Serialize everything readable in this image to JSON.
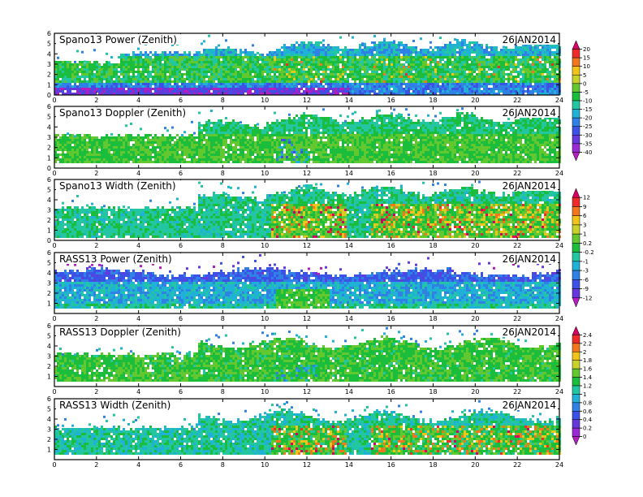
{
  "chart_data": [
    {
      "type": "heatmap",
      "title": "Spano13 Power (Zenith)",
      "date": "26JAN2014",
      "x_ticks": [
        0,
        2,
        4,
        6,
        8,
        10,
        12,
        14,
        16,
        18,
        20,
        22,
        24
      ],
      "y_ticks": [
        0,
        1,
        2,
        3,
        4,
        5,
        6
      ],
      "xlim": [
        0,
        24
      ],
      "ylim": [
        0,
        6
      ],
      "colorbar": "power"
    },
    {
      "type": "heatmap",
      "title": "Spano13 Doppler (Zenith)",
      "date": "26JAN2014",
      "x_ticks": [
        0,
        2,
        4,
        6,
        8,
        10,
        12,
        14,
        16,
        18,
        20,
        22,
        24
      ],
      "y_ticks": [
        0,
        1,
        2,
        3,
        4,
        5,
        6
      ],
      "xlim": [
        0,
        24
      ],
      "ylim": [
        0,
        6
      ],
      "colorbar": "power"
    },
    {
      "type": "heatmap",
      "title": "Spano13 Width (Zenith)",
      "date": "26JAN2014",
      "x_ticks": [
        0,
        2,
        4,
        6,
        8,
        10,
        12,
        14,
        16,
        18,
        20,
        22,
        24
      ],
      "y_ticks": [
        0,
        1,
        2,
        3,
        4,
        5,
        6
      ],
      "xlim": [
        0,
        24
      ],
      "ylim": [
        0,
        6
      ],
      "colorbar": "rass"
    },
    {
      "type": "heatmap",
      "title": "RASS13 Power (Zenith)",
      "date": "26JAN2014",
      "x_ticks": [
        0,
        2,
        4,
        6,
        8,
        10,
        12,
        14,
        16,
        18,
        20,
        22,
        24
      ],
      "y_ticks": [
        1,
        2,
        3,
        4,
        5,
        6
      ],
      "xlim": [
        0,
        24
      ],
      "ylim": [
        0,
        6
      ],
      "colorbar": "rass"
    },
    {
      "type": "heatmap",
      "title": "RASS13 Doppler (Zenith)",
      "date": "26JAN2014",
      "x_ticks": [
        0,
        2,
        4,
        6,
        8,
        10,
        12,
        14,
        16,
        18,
        20,
        22,
        24
      ],
      "y_ticks": [
        1,
        2,
        3,
        4,
        5,
        6
      ],
      "xlim": [
        0,
        24
      ],
      "ylim": [
        0,
        6
      ],
      "colorbar": "width"
    },
    {
      "type": "heatmap",
      "title": "RASS13 Width (Zenith)",
      "date": "26JAN2014",
      "x_ticks": [
        0,
        2,
        4,
        6,
        8,
        10,
        12,
        14,
        16,
        18,
        20,
        22,
        24
      ],
      "y_ticks": [
        1,
        2,
        3,
        4,
        5,
        6
      ],
      "xlim": [
        0,
        24
      ],
      "ylim": [
        0,
        6
      ],
      "colorbar": "width"
    }
  ],
  "colorbars": {
    "power": {
      "labels": [
        "20",
        "15",
        "10",
        "5",
        "0",
        "-5",
        "-10",
        "-15",
        "-20",
        "-25",
        "-30",
        "-35",
        "-40"
      ],
      "colors": [
        "#d60062",
        "#ee2b2b",
        "#f2761d",
        "#f0c419",
        "#c8d22a",
        "#63c72f",
        "#1bbd3c",
        "#22c6a1",
        "#20b1d6",
        "#2f81e6",
        "#3c52e6",
        "#6539dc",
        "#9a2ad6",
        "#b41ebf"
      ]
    },
    "rass": {
      "labels": [
        "12",
        "9",
        "6",
        "3",
        "1",
        "0.2",
        "-0.2",
        "-1",
        "-3",
        "-6",
        "-9",
        "-12"
      ],
      "colors": [
        "#d60062",
        "#ee2b2b",
        "#f2761d",
        "#f0c419",
        "#c8d22a",
        "#63c72f",
        "#1bbd3c",
        "#22c6a1",
        "#20b1d6",
        "#2f81e6",
        "#3c52e6",
        "#6539dc",
        "#b41ebf"
      ]
    },
    "width": {
      "labels": [
        "2.4",
        "2.2",
        "2",
        "1.8",
        "1.6",
        "1.4",
        "1.2",
        "1",
        "0.8",
        "0.6",
        "0.4",
        "0.2",
        "0"
      ],
      "colors": [
        "#d60062",
        "#ee2b2b",
        "#f2761d",
        "#f0c419",
        "#c8d22a",
        "#63c72f",
        "#1bbd3c",
        "#22c6a1",
        "#20b1d6",
        "#2f81e6",
        "#3c52e6",
        "#6539dc",
        "#9a2ad6",
        "#b41ebf"
      ]
    }
  }
}
